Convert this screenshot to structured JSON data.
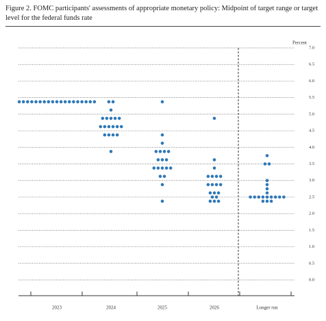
{
  "chart_data": {
    "type": "dot",
    "title": "Figure 2.  FOMC participants' assessments of appropriate monetary policy: Midpoint of target range or target level for the federal funds rate",
    "y_axis_label": "Percent",
    "categories": [
      "2023",
      "2024",
      "2025",
      "2026",
      "Longer run"
    ],
    "dots": [
      [
        {
          "y": 5.375,
          "count": 19
        }
      ],
      [
        {
          "y": 5.375,
          "count": 2
        },
        {
          "y": 5.125,
          "count": 1
        },
        {
          "y": 4.875,
          "count": 5
        },
        {
          "y": 4.625,
          "count": 6
        },
        {
          "y": 4.375,
          "count": 4
        },
        {
          "y": 3.875,
          "count": 1
        }
      ],
      [
        {
          "y": 5.375,
          "count": 1
        },
        {
          "y": 4.375,
          "count": 1
        },
        {
          "y": 4.125,
          "count": 1
        },
        {
          "y": 3.875,
          "count": 4
        },
        {
          "y": 3.625,
          "count": 3
        },
        {
          "y": 3.375,
          "count": 5
        },
        {
          "y": 3.125,
          "count": 2
        },
        {
          "y": 2.875,
          "count": 1
        },
        {
          "y": 2.375,
          "count": 1
        }
      ],
      [
        {
          "y": 4.875,
          "count": 1
        },
        {
          "y": 3.625,
          "count": 1
        },
        {
          "y": 3.375,
          "count": 1
        },
        {
          "y": 3.125,
          "count": 4
        },
        {
          "y": 2.875,
          "count": 4
        },
        {
          "y": 2.625,
          "count": 3
        },
        {
          "y": 2.5,
          "count": 2
        },
        {
          "y": 2.375,
          "count": 3
        }
      ],
      [
        {
          "y": 3.75,
          "count": 1
        },
        {
          "y": 3.5,
          "count": 2
        },
        {
          "y": 3.0,
          "count": 1
        },
        {
          "y": 2.875,
          "count": 1
        },
        {
          "y": 2.75,
          "count": 1
        },
        {
          "y": 2.625,
          "count": 1
        },
        {
          "y": 2.5,
          "count": 9
        },
        {
          "y": 2.375,
          "count": 3
        }
      ]
    ],
    "color": "#2f78b7",
    "ylim": [
      0,
      7
    ],
    "yticks": [
      {
        "value": 0,
        "label": "0.0"
      },
      0.5,
      {
        "value": 1,
        "label": "1.0"
      },
      1.5,
      {
        "value": 2,
        "label": "2.0"
      },
      2.5,
      {
        "value": 3,
        "label": "3.0"
      },
      3.5,
      {
        "value": 4,
        "label": "4.0"
      },
      4.5,
      {
        "value": 5,
        "label": "5.0"
      },
      5.5,
      {
        "value": 6,
        "label": "6.0"
      },
      6.5,
      {
        "value": 7,
        "label": "7.0"
      }
    ],
    "grid": true
  }
}
